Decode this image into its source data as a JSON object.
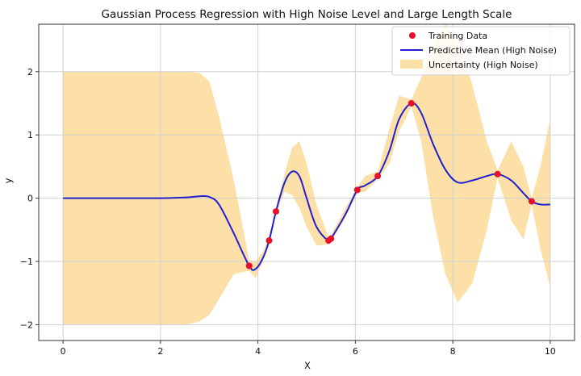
{
  "chart_data": {
    "type": "line",
    "title": "Gaussian Process Regression with High Noise Level and Large Length Scale",
    "xlabel": "X",
    "ylabel": "y",
    "xlim": [
      -0.5,
      10.5
    ],
    "ylim": [
      -2.25,
      2.75
    ],
    "xticks": [
      0,
      2,
      4,
      6,
      8,
      10
    ],
    "yticks": [
      -2,
      -1,
      0,
      1,
      2
    ],
    "grid": true,
    "legend_position": "top-right",
    "colors": {
      "training": "#e8102a",
      "mean": "#2020d0",
      "band": "#fde0a8",
      "grid": "#cfcfcf",
      "axes": "#333333"
    },
    "series": [
      {
        "name": "Training Data",
        "kind": "scatter",
        "x": [
          3.82,
          4.23,
          4.37,
          5.45,
          5.5,
          6.04,
          6.46,
          7.15,
          8.92,
          9.62
        ],
        "y": [
          -1.07,
          -0.67,
          -0.21,
          -0.67,
          -0.64,
          0.13,
          0.35,
          1.5,
          0.38,
          -0.05
        ]
      },
      {
        "name": "Predictive Mean (High Noise)",
        "kind": "line",
        "x": [
          0,
          1,
          2,
          2.5,
          2.8,
          3.0,
          3.2,
          3.5,
          3.82,
          3.95,
          4.1,
          4.23,
          4.37,
          4.55,
          4.7,
          4.85,
          5.0,
          5.2,
          5.45,
          5.5,
          5.8,
          6.04,
          6.2,
          6.46,
          6.7,
          6.9,
          7.15,
          7.35,
          7.6,
          7.85,
          8.1,
          8.4,
          8.7,
          8.92,
          9.2,
          9.45,
          9.62,
          9.8,
          10.0
        ],
        "y": [
          0,
          0,
          0,
          0.01,
          0.03,
          0.02,
          -0.1,
          -0.55,
          -1.07,
          -1.12,
          -0.95,
          -0.67,
          -0.21,
          0.25,
          0.42,
          0.35,
          0.0,
          -0.45,
          -0.68,
          -0.64,
          -0.25,
          0.13,
          0.2,
          0.35,
          0.75,
          1.25,
          1.5,
          1.35,
          0.85,
          0.45,
          0.25,
          0.28,
          0.35,
          0.38,
          0.28,
          0.08,
          -0.05,
          -0.1,
          -0.1
        ]
      },
      {
        "name": "Uncertainty (High Noise)",
        "kind": "band",
        "x": [
          0,
          1,
          2,
          2.5,
          2.8,
          3.0,
          3.2,
          3.5,
          3.82,
          3.95,
          4.1,
          4.23,
          4.37,
          4.55,
          4.7,
          4.85,
          5.0,
          5.2,
          5.45,
          5.5,
          5.8,
          6.04,
          6.2,
          6.46,
          6.7,
          6.9,
          7.15,
          7.35,
          7.6,
          7.85,
          8.1,
          8.4,
          8.7,
          8.92,
          9.2,
          9.45,
          9.62,
          9.8,
          10.0
        ],
        "lower": [
          -2.0,
          -2.0,
          -2.0,
          -2.0,
          -1.95,
          -1.85,
          -1.6,
          -1.2,
          -1.15,
          -1.27,
          -1.0,
          -0.72,
          -0.25,
          0.1,
          0.05,
          -0.15,
          -0.45,
          -0.75,
          -0.73,
          -0.7,
          -0.3,
          0.08,
          0.1,
          0.3,
          0.55,
          1.05,
          1.45,
          0.9,
          -0.3,
          -1.2,
          -1.65,
          -1.35,
          -0.5,
          0.32,
          -0.35,
          -0.65,
          -0.1,
          -0.8,
          -1.4
        ],
        "upper": [
          2.0,
          2.0,
          2.0,
          2.0,
          1.98,
          1.85,
          1.3,
          0.3,
          -0.98,
          -1.0,
          -0.85,
          -0.6,
          -0.18,
          0.4,
          0.8,
          0.9,
          0.55,
          -0.1,
          -0.62,
          -0.58,
          -0.15,
          0.18,
          0.35,
          0.42,
          1.1,
          1.62,
          1.56,
          1.9,
          2.45,
          2.75,
          2.5,
          1.8,
          0.9,
          0.44,
          0.9,
          0.5,
          0.0,
          0.5,
          1.25
        ]
      }
    ]
  }
}
